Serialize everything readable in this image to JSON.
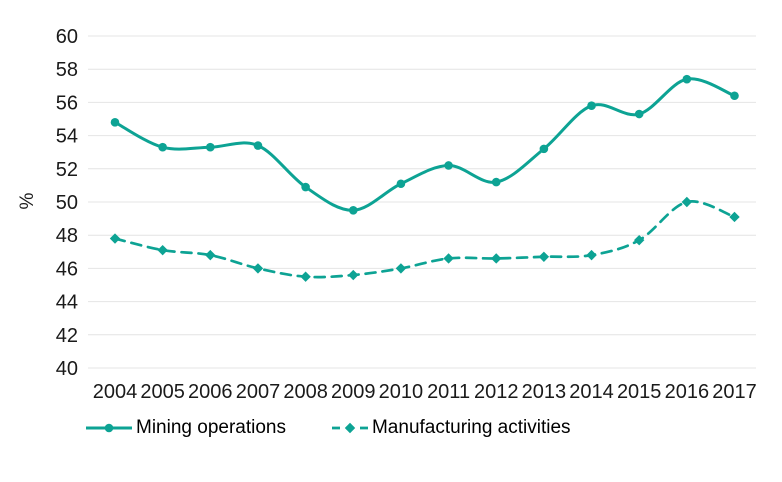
{
  "chart_data": {
    "type": "line",
    "title": "",
    "xlabel": "",
    "ylabel": "%",
    "ylim": [
      40,
      60
    ],
    "ytick_step": 2,
    "grid": "horizontal-only",
    "legend_position": "bottom-left",
    "categories": [
      "2004",
      "2005",
      "2006",
      "2007",
      "2008",
      "2009",
      "2010",
      "2011",
      "2012",
      "2013",
      "2014",
      "2015",
      "2016",
      "2017"
    ],
    "series": [
      {
        "name": "Mining operations",
        "line_style": "solid",
        "marker": "circle",
        "values": [
          54.8,
          53.3,
          53.3,
          53.4,
          50.9,
          49.5,
          51.1,
          52.2,
          51.2,
          53.2,
          55.8,
          55.3,
          57.4,
          56.4
        ]
      },
      {
        "name": "Manufacturing activities",
        "line_style": "dashed",
        "marker": "diamond",
        "values": [
          47.8,
          47.1,
          46.8,
          46.0,
          45.5,
          45.6,
          46.0,
          46.6,
          46.6,
          46.7,
          46.8,
          47.7,
          50.0,
          49.1
        ]
      }
    ],
    "colors": {
      "line": "#0DA394",
      "grid": "#E4E4E4",
      "tick_text": "#1A1A1A",
      "legend_text": "#000000",
      "background": "#FFFFFF"
    }
  }
}
